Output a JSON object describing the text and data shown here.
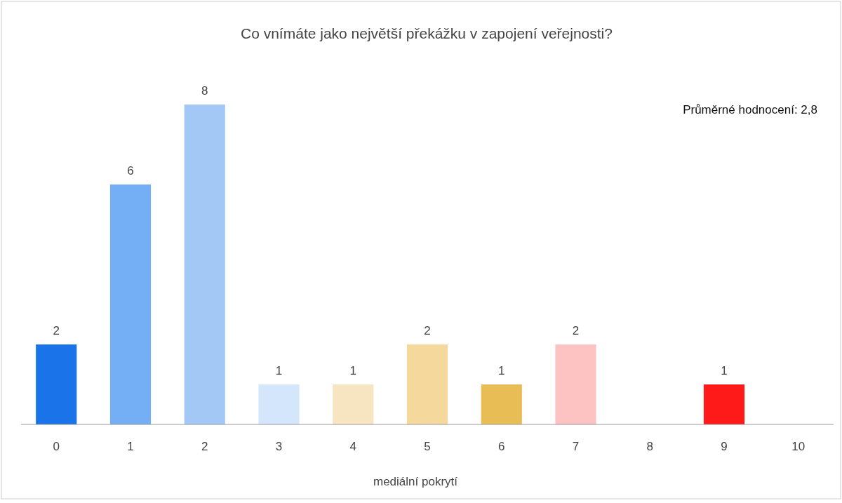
{
  "chart_data": {
    "type": "bar",
    "title": "Co vnímáte jako největší překážku v zapojení veřejnosti?",
    "xlabel": "mediální pokrytí",
    "categories": [
      "0",
      "1",
      "2",
      "3",
      "4",
      "5",
      "6",
      "7",
      "8",
      "9",
      "10"
    ],
    "values": [
      2,
      6,
      8,
      1,
      1,
      2,
      1,
      2,
      null,
      1,
      null
    ],
    "colors": [
      "#1a73e8",
      "#74aef4",
      "#a4c8f6",
      "#d4e6fc",
      "#f6e5c0",
      "#f5d89b",
      "#e8bd56",
      "#fcc3c2",
      null,
      "#ff1a1a",
      null
    ],
    "data_labels": true,
    "annotations": [
      "Průměrné hodnocení: 2,8"
    ]
  }
}
